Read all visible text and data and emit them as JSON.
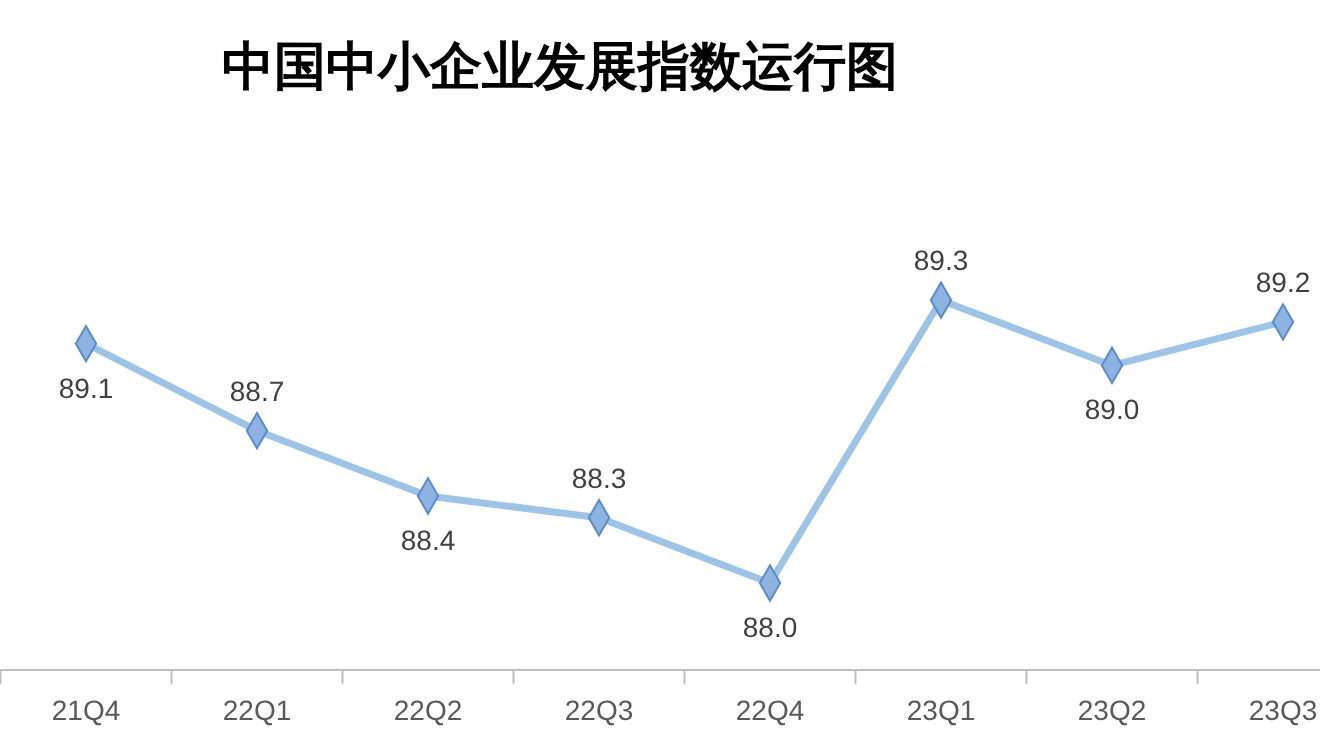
{
  "chart_data": {
    "type": "line",
    "title": "中国中小企业发展指数运行图",
    "categories": [
      "21Q4",
      "22Q1",
      "22Q2",
      "22Q3",
      "22Q4",
      "23Q1",
      "23Q2",
      "23Q3"
    ],
    "series": [
      {
        "color": "#9dc3e6",
        "values": [
          89.1,
          88.7,
          88.4,
          88.3,
          88.0,
          89.3,
          89.0,
          89.2
        ],
        "value_labels": [
          "89.1",
          "88.7",
          "88.4",
          "88.3",
          "88.0",
          "89.3",
          "89.0",
          "89.2"
        ]
      }
    ],
    "ylim": [
      87.6,
      90.68
    ],
    "tick_labels": "x",
    "marker": "diamond"
  }
}
